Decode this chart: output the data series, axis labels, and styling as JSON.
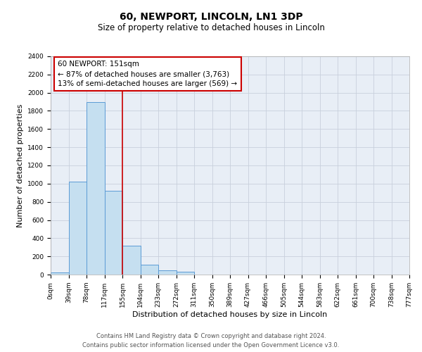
{
  "title": "60, NEWPORT, LINCOLN, LN1 3DP",
  "subtitle": "Size of property relative to detached houses in Lincoln",
  "xlabel": "Distribution of detached houses by size in Lincoln",
  "ylabel": "Number of detached properties",
  "bin_labels": [
    "0sqm",
    "39sqm",
    "78sqm",
    "117sqm",
    "155sqm",
    "194sqm",
    "233sqm",
    "272sqm",
    "311sqm",
    "350sqm",
    "389sqm",
    "427sqm",
    "466sqm",
    "505sqm",
    "544sqm",
    "583sqm",
    "622sqm",
    "661sqm",
    "700sqm",
    "738sqm",
    "777sqm"
  ],
  "bar_values": [
    20,
    1025,
    1900,
    920,
    320,
    105,
    50,
    30,
    0,
    0,
    0,
    0,
    0,
    0,
    0,
    0,
    0,
    0,
    0,
    0
  ],
  "bar_color": "#c5dff0",
  "bar_edge_color": "#5b9bd5",
  "background_color": "#e8eef6",
  "grid_color": "#c8d0dc",
  "ylim": [
    0,
    2400
  ],
  "yticks": [
    0,
    200,
    400,
    600,
    800,
    1000,
    1200,
    1400,
    1600,
    1800,
    2000,
    2200,
    2400
  ],
  "property_line_x": 4.0,
  "property_line_color": "#cc0000",
  "annotation_title": "60 NEWPORT: 151sqm",
  "annotation_line1": "← 87% of detached houses are smaller (3,763)",
  "annotation_line2": "13% of semi-detached houses are larger (569) →",
  "annotation_box_color": "#cc0000",
  "footer_line1": "Contains HM Land Registry data © Crown copyright and database right 2024.",
  "footer_line2": "Contains public sector information licensed under the Open Government Licence v3.0.",
  "title_fontsize": 10,
  "subtitle_fontsize": 8.5,
  "axis_label_fontsize": 8,
  "tick_fontsize": 6.5,
  "annotation_fontsize": 7.5,
  "footer_fontsize": 6
}
